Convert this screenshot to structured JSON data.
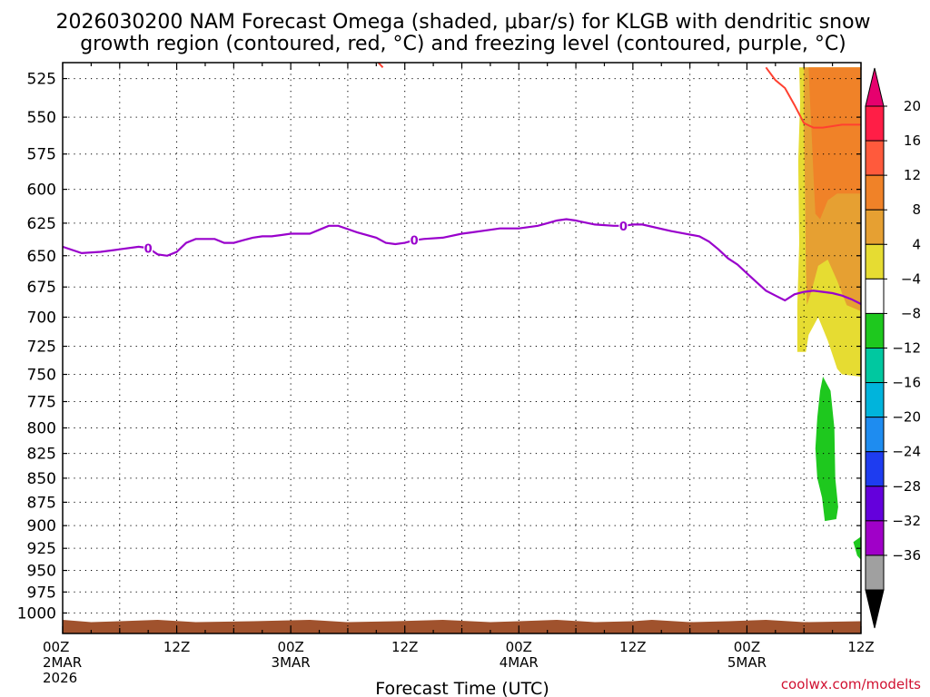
{
  "chart_data": {
    "type": "heatmap",
    "title_line1": "2026030200 NAM Forecast Omega (shaded, μbar/s) for KLGB with dendritic snow",
    "title_line2": "growth region (contoured, red, °C) and freezing level (contoured, purple, °C)",
    "xlabel": "Forecast Time (UTC)",
    "credit": "coolwx.com/modelts",
    "x_range_hours": [
      0,
      84
    ],
    "y_range_hpa": [
      1025,
      515
    ],
    "y_scale": "log-pressure",
    "y_ticks": [
      525,
      550,
      575,
      600,
      625,
      650,
      675,
      700,
      725,
      750,
      775,
      800,
      825,
      850,
      875,
      900,
      925,
      950,
      975,
      1000
    ],
    "x_ticks": [
      {
        "hour": 0,
        "label": "00Z",
        "sub": "2MAR",
        "sub2": "2026"
      },
      {
        "hour": 12,
        "label": "12Z",
        "sub": "",
        "sub2": ""
      },
      {
        "hour": 24,
        "label": "00Z",
        "sub": "3MAR",
        "sub2": ""
      },
      {
        "hour": 36,
        "label": "12Z",
        "sub": "",
        "sub2": ""
      },
      {
        "hour": 48,
        "label": "00Z",
        "sub": "4MAR",
        "sub2": ""
      },
      {
        "hour": 60,
        "label": "12Z",
        "sub": "",
        "sub2": ""
      },
      {
        "hour": 72,
        "label": "00Z",
        "sub": "5MAR",
        "sub2": ""
      },
      {
        "hour": 84,
        "label": "12Z",
        "sub": "",
        "sub2": ""
      }
    ],
    "grid": true,
    "colorbar": {
      "labels": [
        "20",
        "16",
        "12",
        "8",
        "4",
        "−4",
        "−8",
        "−12",
        "−16",
        "−20",
        "−24",
        "−28",
        "−32",
        "−36"
      ],
      "colors": [
        "#ff1e46",
        "#ff5a3c",
        "#f08228",
        "#e6a032",
        "#e6dc32",
        "#ffffff",
        "#1ec81e",
        "#00c8a0",
        "#00b4dc",
        "#1e8cf0",
        "#1e3cf0",
        "#6400dc",
        "#a000c8",
        "#a0a0a0"
      ],
      "top_arrow_color": "#e6006e",
      "bottom_arrow_color": "#000000"
    },
    "freezing_level": {
      "color": "#9900cc",
      "label": "0",
      "hours": [
        0,
        2,
        4,
        6,
        8,
        9,
        10,
        11,
        12,
        13,
        14,
        16,
        17,
        18,
        19,
        20,
        21,
        22,
        23,
        24,
        26,
        27,
        28,
        29,
        31,
        33,
        34,
        35,
        36,
        37,
        38,
        40,
        42,
        43,
        45,
        46,
        48,
        50,
        51,
        52,
        53,
        54,
        56,
        58,
        59,
        60,
        61,
        64,
        67,
        68,
        69,
        70,
        71,
        72,
        73,
        74,
        75,
        76,
        77,
        78,
        79,
        80,
        81,
        82,
        83,
        84
      ],
      "values": [
        643,
        648,
        647,
        645,
        643,
        644,
        649,
        650,
        647,
        640,
        637,
        637,
        640,
        640,
        638,
        636,
        635,
        635,
        634,
        633,
        633,
        630,
        627,
        627,
        632,
        636,
        640,
        641,
        640,
        638,
        637,
        636,
        633,
        632,
        630,
        629,
        629,
        627,
        625,
        623,
        622,
        623,
        626,
        627,
        627,
        626,
        626,
        631,
        635,
        639,
        645,
        652,
        657,
        664,
        671,
        678,
        682,
        686,
        681,
        679,
        678,
        679,
        680,
        682,
        685,
        689
      ],
      "label_hours": [
        9,
        37,
        59
      ]
    },
    "dendritic_growth_contour": {
      "color": "#ff4030",
      "hours": [
        74,
        75,
        76,
        77,
        78,
        79,
        80,
        81,
        82,
        83,
        84
      ],
      "values": [
        518,
        526,
        531,
        542,
        554,
        557,
        557,
        556,
        555,
        555,
        555
      ],
      "fragment_hour": 33.5,
      "fragment_pressure": 518
    },
    "omega_regions": [
      {
        "band": "4 to 8",
        "color": "#e6dc32",
        "points": [
          [
            77.5,
            518
          ],
          [
            84,
            518
          ],
          [
            84,
            752
          ],
          [
            82,
            750
          ],
          [
            81.5,
            745
          ],
          [
            80.5,
            720
          ],
          [
            79.5,
            700
          ],
          [
            78.5,
            715
          ],
          [
            78.2,
            730
          ],
          [
            77.3,
            730
          ],
          [
            77.3,
            690
          ],
          [
            77.5,
            640
          ],
          [
            77.4,
            580
          ],
          [
            77.6,
            540
          ]
        ]
      },
      {
        "band": "8 to 12",
        "color": "#e6a032",
        "points": [
          [
            78,
            518
          ],
          [
            84,
            518
          ],
          [
            84,
            695
          ],
          [
            82.5,
            690
          ],
          [
            81.5,
            670
          ],
          [
            80.5,
            653
          ],
          [
            79.5,
            658
          ],
          [
            78.8,
            678
          ],
          [
            78.3,
            690
          ],
          [
            78.2,
            660
          ],
          [
            78.1,
            600
          ],
          [
            78.0,
            560
          ]
        ]
      },
      {
        "band": "12 to 16",
        "color": "#f08228",
        "points": [
          [
            78.5,
            518
          ],
          [
            84,
            518
          ],
          [
            84,
            603
          ],
          [
            81.5,
            603
          ],
          [
            80.5,
            608
          ],
          [
            79.7,
            622
          ],
          [
            79.2,
            618
          ],
          [
            79.0,
            590
          ],
          [
            78.8,
            560
          ],
          [
            78.6,
            535
          ]
        ]
      },
      {
        "band": "-4 to -8",
        "color": "#1ec81e",
        "points": [
          [
            80,
            752
          ],
          [
            80.8,
            765
          ],
          [
            81.2,
            800
          ],
          [
            81.3,
            850
          ],
          [
            81.6,
            880
          ],
          [
            81.4,
            893
          ],
          [
            80.2,
            895
          ],
          [
            79.9,
            870
          ],
          [
            79.4,
            850
          ],
          [
            79.2,
            820
          ],
          [
            79.4,
            790
          ],
          [
            79.7,
            765
          ]
        ]
      },
      {
        "band": "-4 to -8",
        "color": "#1ec81e",
        "points": [
          [
            83.2,
            918
          ],
          [
            84,
            912
          ],
          [
            84,
            938
          ],
          [
            83.6,
            933
          ]
        ]
      }
    ],
    "ground_band": {
      "color": "#a0522d",
      "top_hpa": 1010,
      "bottom_hpa": 1025
    }
  }
}
